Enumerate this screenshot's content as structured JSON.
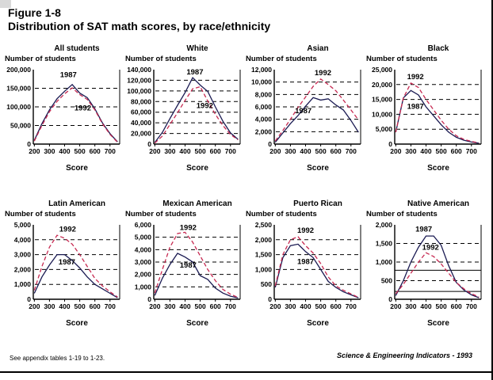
{
  "page": {
    "title_line1": "Figure 1-8",
    "title_line2": "Distribution of SAT math scores, by race/ethnicity",
    "footer_left": "See appendix tables 1-19 to 1-23.",
    "footer_right": "Science & Engineering Indicators - 1993"
  },
  "colors": {
    "series_1987": "#1a1a52",
    "series_1992": "#c62850",
    "grid": "#000000",
    "axis": "#000000",
    "text": "#000000"
  },
  "chart_data": [
    {
      "type": "line",
      "title": "All students",
      "ylabel": "Number of students",
      "xlabel": "Score",
      "x": [
        200,
        250,
        300,
        350,
        400,
        450,
        500,
        550,
        600,
        650,
        700,
        750
      ],
      "xticks": [
        "200",
        "300",
        "400",
        "500",
        "600",
        "700"
      ],
      "yticks": [
        "0",
        "50,000",
        "100,000",
        "150,000",
        "200,000"
      ],
      "series": [
        {
          "name": "1987",
          "style": "solid",
          "values": [
            10000,
            55000,
            92000,
            122000,
            142000,
            160000,
            137000,
            125000,
            95000,
            57000,
            28000,
            6000
          ]
        },
        {
          "name": "1992",
          "style": "dashed",
          "values": [
            8000,
            50000,
            87000,
            115000,
            135000,
            151000,
            133000,
            120000,
            92000,
            55000,
            26000,
            5000
          ]
        }
      ],
      "annotations": [
        {
          "text": "1987",
          "x": 425,
          "y": 180000
        },
        {
          "text": "1992",
          "x": 520,
          "y": 90000
        }
      ],
      "extra_hlines": []
    },
    {
      "type": "line",
      "title": "White",
      "ylabel": "Number of students",
      "xlabel": "Score",
      "x": [
        200,
        250,
        300,
        350,
        400,
        450,
        500,
        550,
        600,
        650,
        700,
        750
      ],
      "xticks": [
        "200",
        "300",
        "400",
        "500",
        "600",
        "700"
      ],
      "yticks": [
        "0",
        "20,000",
        "40,000",
        "60,000",
        "80,000",
        "100,000",
        "120,000",
        "140,000"
      ],
      "series": [
        {
          "name": "1987",
          "style": "solid",
          "values": [
            3000,
            22000,
            48000,
            73000,
            97000,
            125000,
            111000,
            99000,
            70000,
            43000,
            21000,
            9000
          ]
        },
        {
          "name": "1992",
          "style": "dashed",
          "values": [
            2000,
            15000,
            37000,
            59000,
            82000,
            104000,
            108000,
            81000,
            56000,
            35000,
            18000,
            8000
          ]
        }
      ],
      "annotations": [
        {
          "text": "1987",
          "x": 465,
          "y": 131000
        },
        {
          "text": "1992",
          "x": 530,
          "y": 68000
        }
      ],
      "extra_hlines": []
    },
    {
      "type": "line",
      "title": "Asian",
      "ylabel": "Number of students",
      "xlabel": "Score",
      "x": [
        200,
        250,
        300,
        350,
        400,
        450,
        500,
        550,
        600,
        650,
        700,
        750
      ],
      "xticks": [
        "200",
        "300",
        "400",
        "500",
        "600",
        "700"
      ],
      "yticks": [
        "0",
        "2,000",
        "4,000",
        "6,000",
        "8,000",
        "10,000",
        "12,000"
      ],
      "series": [
        {
          "name": "1987",
          "style": "solid",
          "values": [
            300,
            1800,
            3300,
            4600,
            6100,
            7500,
            7100,
            7300,
            6300,
            5500,
            3800,
            1900
          ]
        },
        {
          "name": "1992",
          "style": "dashed",
          "values": [
            500,
            2200,
            4000,
            5900,
            7600,
            9300,
            10500,
            9600,
            8600,
            7100,
            5500,
            3900
          ]
        }
      ],
      "annotations": [
        {
          "text": "1992",
          "x": 515,
          "y": 11100
        },
        {
          "text": "1987",
          "x": 385,
          "y": 5000
        }
      ],
      "extra_hlines": []
    },
    {
      "type": "line",
      "title": "Black",
      "ylabel": "Number of students",
      "xlabel": "Score",
      "x": [
        200,
        250,
        300,
        350,
        400,
        450,
        500,
        550,
        600,
        650,
        700,
        750
      ],
      "xticks": [
        "200",
        "300",
        "400",
        "500",
        "600",
        "700"
      ],
      "yticks": [
        "0",
        "5,000",
        "10,000",
        "15,000",
        "20,000",
        "25,000"
      ],
      "series": [
        {
          "name": "1987",
          "style": "solid",
          "values": [
            4000,
            15500,
            18000,
            16500,
            12500,
            9500,
            6500,
            4000,
            2300,
            1300,
            700,
            300
          ]
        },
        {
          "name": "1992",
          "style": "dashed",
          "values": [
            4000,
            15500,
            20500,
            19000,
            15000,
            11500,
            8000,
            5000,
            2800,
            1600,
            900,
            400
          ]
        }
      ],
      "annotations": [
        {
          "text": "1992",
          "x": 330,
          "y": 21800
        },
        {
          "text": "1987",
          "x": 330,
          "y": 11800
        }
      ],
      "extra_hlines": []
    },
    {
      "type": "line",
      "title": "Latin American",
      "ylabel": "Number of students",
      "xlabel": "Score",
      "x": [
        200,
        250,
        300,
        350,
        400,
        450,
        500,
        550,
        600,
        650,
        700,
        750
      ],
      "xticks": [
        "200",
        "300",
        "400",
        "500",
        "600",
        "700"
      ],
      "yticks": [
        "0",
        "1,000",
        "2,000",
        "3,000",
        "4,000",
        "5,000"
      ],
      "series": [
        {
          "name": "1987",
          "style": "solid",
          "values": [
            400,
            1500,
            2300,
            3000,
            3000,
            2600,
            2100,
            1500,
            1000,
            700,
            400,
            100
          ]
        },
        {
          "name": "1992",
          "style": "dashed",
          "values": [
            600,
            2200,
            3500,
            4300,
            4100,
            3700,
            3000,
            2200,
            1400,
            900,
            500,
            150
          ]
        }
      ],
      "annotations": [
        {
          "text": "1992",
          "x": 420,
          "y": 4550
        },
        {
          "text": "1987",
          "x": 415,
          "y": 2350
        }
      ],
      "extra_hlines": []
    },
    {
      "type": "line",
      "title": "Mexican American",
      "ylabel": "Number of students",
      "xlabel": "Score",
      "x": [
        200,
        250,
        300,
        350,
        400,
        450,
        500,
        550,
        600,
        650,
        700,
        750
      ],
      "xticks": [
        "200",
        "300",
        "400",
        "500",
        "600",
        "700"
      ],
      "yticks": [
        "0",
        "1,000",
        "2,000",
        "3,000",
        "4,000",
        "5,000",
        "6,000"
      ],
      "series": [
        {
          "name": "1987",
          "style": "solid",
          "values": [
            300,
            1700,
            2800,
            3700,
            3400,
            3000,
            1900,
            1600,
            900,
            500,
            250,
            100
          ]
        },
        {
          "name": "1992",
          "style": "dashed",
          "values": [
            500,
            2400,
            4200,
            5300,
            5400,
            4600,
            3500,
            2400,
            1500,
            800,
            400,
            150
          ]
        }
      ],
      "annotations": [
        {
          "text": "1992",
          "x": 420,
          "y": 5600
        },
        {
          "text": "1987",
          "x": 420,
          "y": 2550
        }
      ],
      "extra_hlines": []
    },
    {
      "type": "line",
      "title": "Puerto Rican",
      "ylabel": "Number of students",
      "xlabel": "Score",
      "x": [
        200,
        250,
        300,
        350,
        400,
        450,
        500,
        550,
        600,
        650,
        700,
        750
      ],
      "xticks": [
        "200",
        "300",
        "400",
        "500",
        "600",
        "700"
      ],
      "yticks": [
        "0",
        "500",
        "1,000",
        "1,500",
        "2,000",
        "2,500"
      ],
      "series": [
        {
          "name": "1987",
          "style": "solid",
          "values": [
            400,
            1400,
            1800,
            1850,
            1600,
            1400,
            1000,
            600,
            400,
            250,
            150,
            50
          ]
        },
        {
          "name": "1992",
          "style": "dashed",
          "values": [
            450,
            1500,
            2000,
            2100,
            1800,
            1550,
            1200,
            750,
            450,
            300,
            180,
            60
          ]
        }
      ],
      "annotations": [
        {
          "text": "1992",
          "x": 400,
          "y": 2230
        },
        {
          "text": "1987",
          "x": 400,
          "y": 1180
        }
      ],
      "extra_hlines": []
    },
    {
      "type": "line",
      "title": "Native American",
      "ylabel": "Number of students",
      "xlabel": "Score",
      "x": [
        200,
        250,
        300,
        350,
        400,
        450,
        500,
        550,
        600,
        650,
        700,
        750
      ],
      "xticks": [
        "200",
        "300",
        "400",
        "500",
        "600",
        "700"
      ],
      "yticks": [
        "0",
        "500",
        "1,000",
        "1,500",
        "2,000"
      ],
      "series": [
        {
          "name": "1987",
          "style": "solid",
          "values": [
            100,
            500,
            1000,
            1400,
            1700,
            1700,
            1450,
            900,
            450,
            250,
            120,
            40
          ]
        },
        {
          "name": "1992",
          "style": "dashed",
          "values": [
            150,
            400,
            700,
            1000,
            1250,
            1150,
            950,
            700,
            450,
            280,
            150,
            60
          ]
        }
      ],
      "annotations": [
        {
          "text": "1987",
          "x": 385,
          "y": 1820
        },
        {
          "text": "1992",
          "x": 430,
          "y": 1330
        }
      ],
      "extra_hlines": [
        780,
        210
      ]
    }
  ]
}
